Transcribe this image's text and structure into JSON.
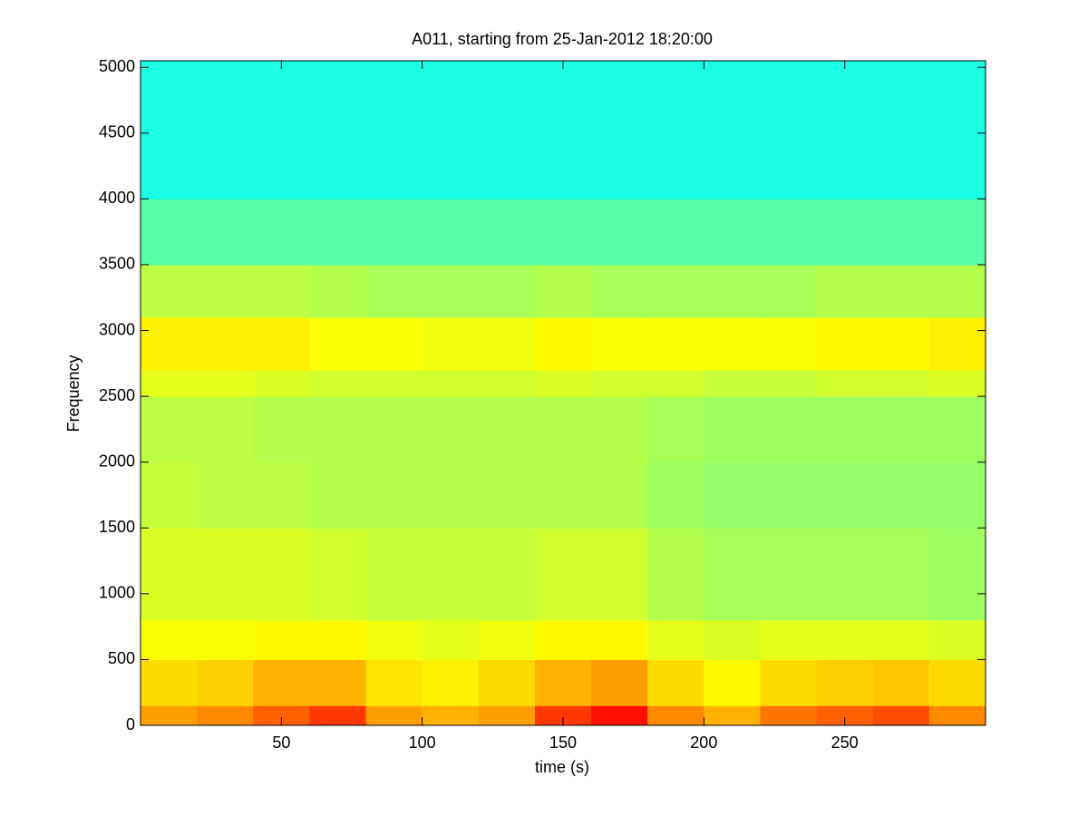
{
  "chart_data": {
    "type": "heatmap",
    "title": "A011, starting from 25-Jan-2012 18:20:00",
    "x_label": "time (s)",
    "y_label": "Frequency",
    "colormap": "jet",
    "xlim": [
      0,
      300
    ],
    "ylim": [
      0,
      5050
    ],
    "xticks": [
      50,
      100,
      150,
      200,
      250
    ],
    "yticks": [
      0,
      500,
      1000,
      1500,
      2000,
      2500,
      3000,
      3500,
      4000,
      4500,
      5000
    ],
    "xbins": [
      0,
      20,
      40,
      60,
      80,
      100,
      120,
      140,
      160,
      180,
      200,
      220,
      240,
      260,
      280,
      300
    ],
    "ybins": [
      0,
      150,
      500,
      800,
      1500,
      2000,
      2500,
      2700,
      3100,
      3500,
      4000,
      5050
    ],
    "z": [
      [
        0.72,
        0.74,
        0.78,
        0.82,
        0.72,
        0.7,
        0.72,
        0.82,
        0.86,
        0.74,
        0.7,
        0.76,
        0.78,
        0.8,
        0.74
      ],
      [
        0.66,
        0.67,
        0.7,
        0.7,
        0.65,
        0.64,
        0.66,
        0.7,
        0.72,
        0.66,
        0.63,
        0.66,
        0.67,
        0.68,
        0.66
      ],
      [
        0.62,
        0.62,
        0.63,
        0.63,
        0.61,
        0.6,
        0.61,
        0.63,
        0.63,
        0.6,
        0.59,
        0.6,
        0.6,
        0.6,
        0.59
      ],
      [
        0.59,
        0.59,
        0.59,
        0.58,
        0.57,
        0.57,
        0.57,
        0.58,
        0.58,
        0.55,
        0.54,
        0.54,
        0.54,
        0.54,
        0.53
      ],
      [
        0.57,
        0.56,
        0.56,
        0.55,
        0.55,
        0.55,
        0.55,
        0.55,
        0.55,
        0.53,
        0.52,
        0.52,
        0.52,
        0.52,
        0.52
      ],
      [
        0.56,
        0.56,
        0.55,
        0.55,
        0.55,
        0.55,
        0.55,
        0.55,
        0.55,
        0.54,
        0.53,
        0.53,
        0.53,
        0.53,
        0.53
      ],
      [
        0.6,
        0.6,
        0.59,
        0.58,
        0.58,
        0.58,
        0.58,
        0.59,
        0.58,
        0.58,
        0.57,
        0.57,
        0.58,
        0.58,
        0.59
      ],
      [
        0.64,
        0.64,
        0.64,
        0.62,
        0.62,
        0.61,
        0.61,
        0.63,
        0.62,
        0.62,
        0.62,
        0.62,
        0.63,
        0.63,
        0.64
      ],
      [
        0.56,
        0.56,
        0.56,
        0.55,
        0.54,
        0.54,
        0.54,
        0.55,
        0.54,
        0.54,
        0.54,
        0.54,
        0.55,
        0.55,
        0.55
      ],
      [
        0.46,
        0.46,
        0.46,
        0.46,
        0.46,
        0.46,
        0.46,
        0.46,
        0.46,
        0.46,
        0.46,
        0.46,
        0.46,
        0.46,
        0.46
      ],
      [
        0.4,
        0.4,
        0.4,
        0.4,
        0.4,
        0.4,
        0.4,
        0.4,
        0.4,
        0.4,
        0.4,
        0.4,
        0.4,
        0.4,
        0.4
      ]
    ]
  }
}
